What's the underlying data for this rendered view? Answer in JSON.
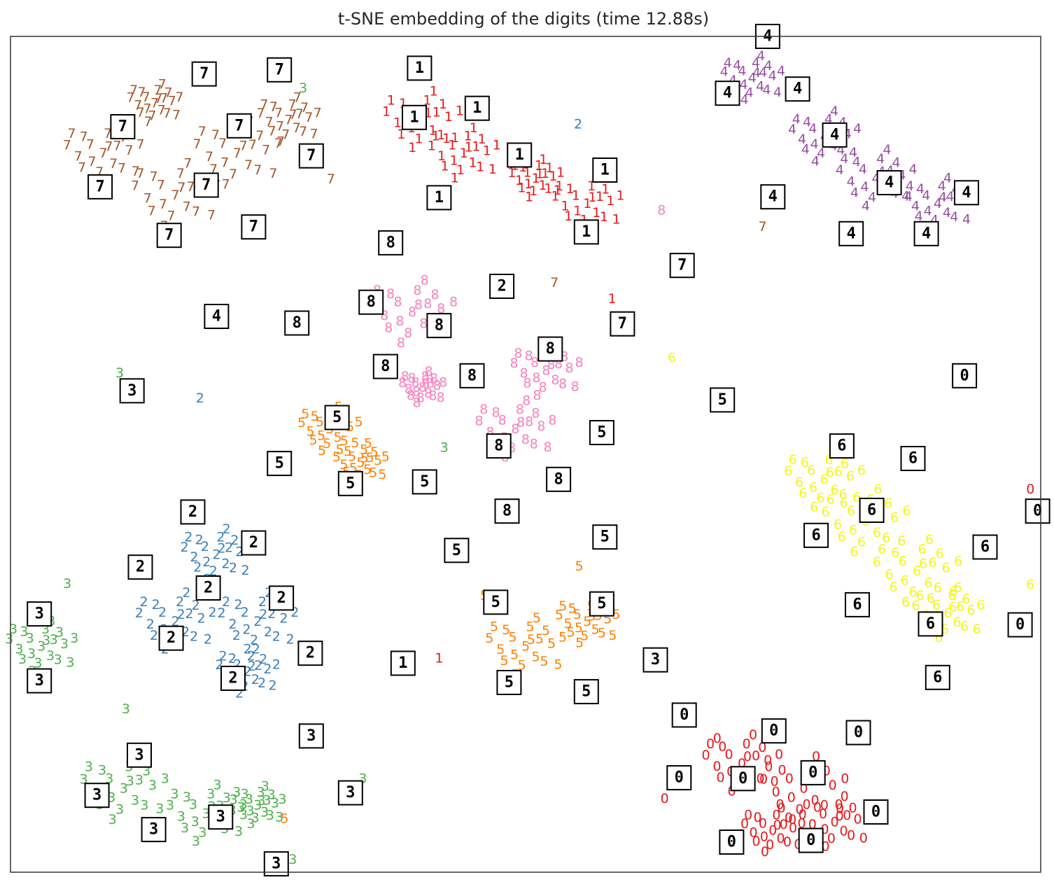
{
  "chart_data": {
    "type": "scatter",
    "title": "t-SNE embedding of the digits (time 12.88s)",
    "xlabel": "",
    "ylabel": "",
    "xlim": [
      0,
      1
    ],
    "ylim": [
      0,
      1
    ],
    "grid": false,
    "axis_ticks": false,
    "colors": {
      "0": "#e41a1c",
      "1": "#e41a1c",
      "2": "#377eb8",
      "3": "#4daf4a",
      "4": "#984ea3",
      "5": "#ff7f00",
      "6": "#f5f51a",
      "7": "#a65628",
      "8": "#f781bf"
    },
    "cluster_shape": [
      [
        0,
        0
      ],
      [
        0.015,
        0.01
      ],
      [
        -0.014,
        0.012
      ],
      [
        0.011,
        -0.014
      ],
      [
        -0.012,
        -0.011
      ],
      [
        0.028,
        0.004
      ],
      [
        -0.027,
        -0.004
      ],
      [
        0.005,
        0.026
      ],
      [
        -0.004,
        -0.025
      ],
      [
        0.022,
        0.021
      ],
      [
        -0.021,
        0.022
      ],
      [
        0.02,
        -0.02
      ],
      [
        -0.023,
        -0.019
      ],
      [
        0.04,
        0.012
      ],
      [
        -0.039,
        0.011
      ],
      [
        0.012,
        0.038
      ],
      [
        -0.011,
        -0.037
      ],
      [
        0.035,
        -0.024
      ],
      [
        -0.034,
        0.026
      ],
      [
        0.006,
        0.009
      ]
    ],
    "clusters": [
      {
        "digit": "7",
        "x": 0.09,
        "y": 0.86,
        "spread": 0.9
      },
      {
        "digit": "7",
        "x": 0.16,
        "y": 0.81,
        "spread": 1.0
      },
      {
        "digit": "7",
        "x": 0.22,
        "y": 0.86,
        "spread": 1.0
      },
      {
        "digit": "7",
        "x": 0.27,
        "y": 0.9,
        "spread": 0.7
      },
      {
        "digit": "7",
        "x": 0.14,
        "y": 0.92,
        "spread": 0.6
      },
      {
        "digit": "1",
        "x": 0.4,
        "y": 0.9,
        "spread": 0.9
      },
      {
        "digit": "1",
        "x": 0.44,
        "y": 0.86,
        "spread": 0.8
      },
      {
        "digit": "1",
        "x": 0.51,
        "y": 0.83,
        "spread": 0.6
      },
      {
        "digit": "1",
        "x": 0.56,
        "y": 0.8,
        "spread": 0.8
      },
      {
        "digit": "4",
        "x": 0.72,
        "y": 0.95,
        "spread": 0.7
      },
      {
        "digit": "4",
        "x": 0.79,
        "y": 0.88,
        "spread": 0.8
      },
      {
        "digit": "4",
        "x": 0.84,
        "y": 0.83,
        "spread": 0.9
      },
      {
        "digit": "4",
        "x": 0.9,
        "y": 0.8,
        "spread": 0.8
      },
      {
        "digit": "8",
        "x": 0.39,
        "y": 0.67,
        "spread": 1.0
      },
      {
        "digit": "8",
        "x": 0.52,
        "y": 0.6,
        "spread": 0.8
      },
      {
        "digit": "8",
        "x": 0.49,
        "y": 0.53,
        "spread": 0.9
      },
      {
        "digit": "8",
        "x": 0.4,
        "y": 0.58,
        "spread": 0.5
      },
      {
        "digit": "5",
        "x": 0.31,
        "y": 0.53,
        "spread": 0.7
      },
      {
        "digit": "5",
        "x": 0.34,
        "y": 0.49,
        "spread": 0.6
      },
      {
        "digit": "5",
        "x": 0.5,
        "y": 0.27,
        "spread": 0.9
      },
      {
        "digit": "5",
        "x": 0.56,
        "y": 0.3,
        "spread": 0.7
      },
      {
        "digit": "2",
        "x": 0.16,
        "y": 0.3,
        "spread": 0.9
      },
      {
        "digit": "2",
        "x": 0.24,
        "y": 0.3,
        "spread": 0.9
      },
      {
        "digit": "2",
        "x": 0.2,
        "y": 0.38,
        "spread": 0.8
      },
      {
        "digit": "2",
        "x": 0.23,
        "y": 0.24,
        "spread": 0.7
      },
      {
        "digit": "3",
        "x": 0.03,
        "y": 0.27,
        "spread": 0.8
      },
      {
        "digit": "3",
        "x": 0.11,
        "y": 0.1,
        "spread": 1.0
      },
      {
        "digit": "3",
        "x": 0.19,
        "y": 0.07,
        "spread": 0.9
      },
      {
        "digit": "3",
        "x": 0.24,
        "y": 0.08,
        "spread": 0.6
      },
      {
        "digit": "6",
        "x": 0.79,
        "y": 0.47,
        "spread": 0.9
      },
      {
        "digit": "6",
        "x": 0.83,
        "y": 0.42,
        "spread": 1.0
      },
      {
        "digit": "6",
        "x": 0.88,
        "y": 0.36,
        "spread": 1.0
      },
      {
        "digit": "6",
        "x": 0.91,
        "y": 0.31,
        "spread": 0.8
      },
      {
        "digit": "0",
        "x": 0.71,
        "y": 0.13,
        "spread": 0.9
      },
      {
        "digit": "0",
        "x": 0.77,
        "y": 0.1,
        "spread": 1.0
      },
      {
        "digit": "0",
        "x": 0.8,
        "y": 0.06,
        "spread": 0.8
      },
      {
        "digit": "0",
        "x": 0.74,
        "y": 0.05,
        "spread": 0.7
      }
    ],
    "points": [
      {
        "digit": "3",
        "x": 0.284,
        "y": 0.938
      },
      {
        "digit": "7",
        "x": 0.311,
        "y": 0.829
      },
      {
        "digit": "2",
        "x": 0.551,
        "y": 0.895
      },
      {
        "digit": "8",
        "x": 0.632,
        "y": 0.792
      },
      {
        "digit": "7",
        "x": 0.73,
        "y": 0.772
      },
      {
        "digit": "7",
        "x": 0.528,
        "y": 0.705
      },
      {
        "digit": "1",
        "x": 0.584,
        "y": 0.686
      },
      {
        "digit": "6",
        "x": 0.642,
        "y": 0.615
      },
      {
        "digit": "3",
        "x": 0.106,
        "y": 0.597
      },
      {
        "digit": "2",
        "x": 0.184,
        "y": 0.567
      },
      {
        "digit": "3",
        "x": 0.421,
        "y": 0.508
      },
      {
        "digit": "3",
        "x": 0.055,
        "y": 0.345
      },
      {
        "digit": "6",
        "x": 0.99,
        "y": 0.344
      },
      {
        "digit": "0",
        "x": 0.99,
        "y": 0.458
      },
      {
        "digit": "1",
        "x": 0.39,
        "y": 0.248
      },
      {
        "digit": "1",
        "x": 0.416,
        "y": 0.256
      },
      {
        "digit": "5",
        "x": 0.46,
        "y": 0.331
      },
      {
        "digit": "5",
        "x": 0.552,
        "y": 0.366
      },
      {
        "digit": "3",
        "x": 0.342,
        "y": 0.112
      },
      {
        "digit": "3",
        "x": 0.112,
        "y": 0.195
      },
      {
        "digit": "5",
        "x": 0.266,
        "y": 0.064
      },
      {
        "digit": "3",
        "x": 0.274,
        "y": 0.015
      },
      {
        "digit": "0",
        "x": 0.635,
        "y": 0.088
      },
      {
        "digit": "0",
        "x": 0.686,
        "y": 0.16
      }
    ],
    "thumbnails": [
      {
        "digit": "7",
        "x": 0.188,
        "y": 0.955
      },
      {
        "digit": "7",
        "x": 0.261,
        "y": 0.96
      },
      {
        "digit": "7",
        "x": 0.109,
        "y": 0.892
      },
      {
        "digit": "7",
        "x": 0.222,
        "y": 0.893
      },
      {
        "digit": "7",
        "x": 0.292,
        "y": 0.857
      },
      {
        "digit": "7",
        "x": 0.087,
        "y": 0.82
      },
      {
        "digit": "7",
        "x": 0.19,
        "y": 0.822
      },
      {
        "digit": "7",
        "x": 0.236,
        "y": 0.772
      },
      {
        "digit": "7",
        "x": 0.154,
        "y": 0.762
      },
      {
        "digit": "1",
        "x": 0.397,
        "y": 0.962
      },
      {
        "digit": "1",
        "x": 0.392,
        "y": 0.903
      },
      {
        "digit": "1",
        "x": 0.453,
        "y": 0.914
      },
      {
        "digit": "1",
        "x": 0.494,
        "y": 0.858
      },
      {
        "digit": "1",
        "x": 0.577,
        "y": 0.84
      },
      {
        "digit": "1",
        "x": 0.416,
        "y": 0.807
      },
      {
        "digit": "1",
        "x": 0.559,
        "y": 0.766
      },
      {
        "digit": "4",
        "x": 0.735,
        "y": 1.0
      },
      {
        "digit": "4",
        "x": 0.764,
        "y": 0.937
      },
      {
        "digit": "4",
        "x": 0.696,
        "y": 0.932
      },
      {
        "digit": "4",
        "x": 0.8,
        "y": 0.882
      },
      {
        "digit": "4",
        "x": 0.853,
        "y": 0.825
      },
      {
        "digit": "4",
        "x": 0.928,
        "y": 0.813
      },
      {
        "digit": "4",
        "x": 0.74,
        "y": 0.808
      },
      {
        "digit": "4",
        "x": 0.816,
        "y": 0.764
      },
      {
        "digit": "4",
        "x": 0.889,
        "y": 0.764
      },
      {
        "digit": "8",
        "x": 0.369,
        "y": 0.753
      },
      {
        "digit": "2",
        "x": 0.477,
        "y": 0.701
      },
      {
        "digit": "7",
        "x": 0.652,
        "y": 0.726
      },
      {
        "digit": "4",
        "x": 0.2,
        "y": 0.665
      },
      {
        "digit": "8",
        "x": 0.278,
        "y": 0.657
      },
      {
        "digit": "8",
        "x": 0.35,
        "y": 0.682
      },
      {
        "digit": "8",
        "x": 0.416,
        "y": 0.654
      },
      {
        "digit": "7",
        "x": 0.594,
        "y": 0.656
      },
      {
        "digit": "8",
        "x": 0.524,
        "y": 0.626
      },
      {
        "digit": "8",
        "x": 0.364,
        "y": 0.605
      },
      {
        "digit": "8",
        "x": 0.448,
        "y": 0.594
      },
      {
        "digit": "0",
        "x": 0.926,
        "y": 0.594
      },
      {
        "digit": "3",
        "x": 0.118,
        "y": 0.576
      },
      {
        "digit": "5",
        "x": 0.691,
        "y": 0.565
      },
      {
        "digit": "5",
        "x": 0.317,
        "y": 0.544
      },
      {
        "digit": "8",
        "x": 0.474,
        "y": 0.51
      },
      {
        "digit": "5",
        "x": 0.574,
        "y": 0.526
      },
      {
        "digit": "6",
        "x": 0.807,
        "y": 0.51
      },
      {
        "digit": "6",
        "x": 0.876,
        "y": 0.495
      },
      {
        "digit": "5",
        "x": 0.261,
        "y": 0.489
      },
      {
        "digit": "5",
        "x": 0.33,
        "y": 0.465
      },
      {
        "digit": "5",
        "x": 0.402,
        "y": 0.467
      },
      {
        "digit": "8",
        "x": 0.532,
        "y": 0.47
      },
      {
        "digit": "8",
        "x": 0.482,
        "y": 0.432
      },
      {
        "digit": "6",
        "x": 0.836,
        "y": 0.433
      },
      {
        "digit": "0",
        "x": 0.997,
        "y": 0.432
      },
      {
        "digit": "2",
        "x": 0.177,
        "y": 0.431
      },
      {
        "digit": "2",
        "x": 0.236,
        "y": 0.394
      },
      {
        "digit": "6",
        "x": 0.782,
        "y": 0.403
      },
      {
        "digit": "5",
        "x": 0.577,
        "y": 0.401
      },
      {
        "digit": "5",
        "x": 0.433,
        "y": 0.385
      },
      {
        "digit": "6",
        "x": 0.946,
        "y": 0.389
      },
      {
        "digit": "2",
        "x": 0.126,
        "y": 0.365
      },
      {
        "digit": "2",
        "x": 0.192,
        "y": 0.34
      },
      {
        "digit": "2",
        "x": 0.263,
        "y": 0.328
      },
      {
        "digit": "6",
        "x": 0.822,
        "y": 0.32
      },
      {
        "digit": "5",
        "x": 0.471,
        "y": 0.323
      },
      {
        "digit": "5",
        "x": 0.574,
        "y": 0.321
      },
      {
        "digit": "3",
        "x": 0.028,
        "y": 0.309
      },
      {
        "digit": "6",
        "x": 0.893,
        "y": 0.297
      },
      {
        "digit": "0",
        "x": 0.98,
        "y": 0.296
      },
      {
        "digit": "2",
        "x": 0.156,
        "y": 0.28
      },
      {
        "digit": "2",
        "x": 0.291,
        "y": 0.262
      },
      {
        "digit": "1",
        "x": 0.381,
        "y": 0.25
      },
      {
        "digit": "3",
        "x": 0.626,
        "y": 0.254
      },
      {
        "digit": "2",
        "x": 0.216,
        "y": 0.232
      },
      {
        "digit": "3",
        "x": 0.028,
        "y": 0.229
      },
      {
        "digit": "5",
        "x": 0.484,
        "y": 0.227
      },
      {
        "digit": "6",
        "x": 0.9,
        "y": 0.233
      },
      {
        "digit": "5",
        "x": 0.559,
        "y": 0.216
      },
      {
        "digit": "0",
        "x": 0.654,
        "y": 0.188
      },
      {
        "digit": "0",
        "x": 0.741,
        "y": 0.169
      },
      {
        "digit": "0",
        "x": 0.823,
        "y": 0.167
      },
      {
        "digit": "3",
        "x": 0.292,
        "y": 0.163
      },
      {
        "digit": "3",
        "x": 0.125,
        "y": 0.14
      },
      {
        "digit": "0",
        "x": 0.779,
        "y": 0.119
      },
      {
        "digit": "0",
        "x": 0.711,
        "y": 0.112
      },
      {
        "digit": "0",
        "x": 0.649,
        "y": 0.113
      },
      {
        "digit": "3",
        "x": 0.084,
        "y": 0.092
      },
      {
        "digit": "3",
        "x": 0.33,
        "y": 0.095
      },
      {
        "digit": "3",
        "x": 0.204,
        "y": 0.066
      },
      {
        "digit": "3",
        "x": 0.139,
        "y": 0.051
      },
      {
        "digit": "0",
        "x": 0.84,
        "y": 0.072
      },
      {
        "digit": "0",
        "x": 0.7,
        "y": 0.036
      },
      {
        "digit": "0",
        "x": 0.777,
        "y": 0.038
      },
      {
        "digit": "3",
        "x": 0.258,
        "y": 0.01
      }
    ]
  }
}
